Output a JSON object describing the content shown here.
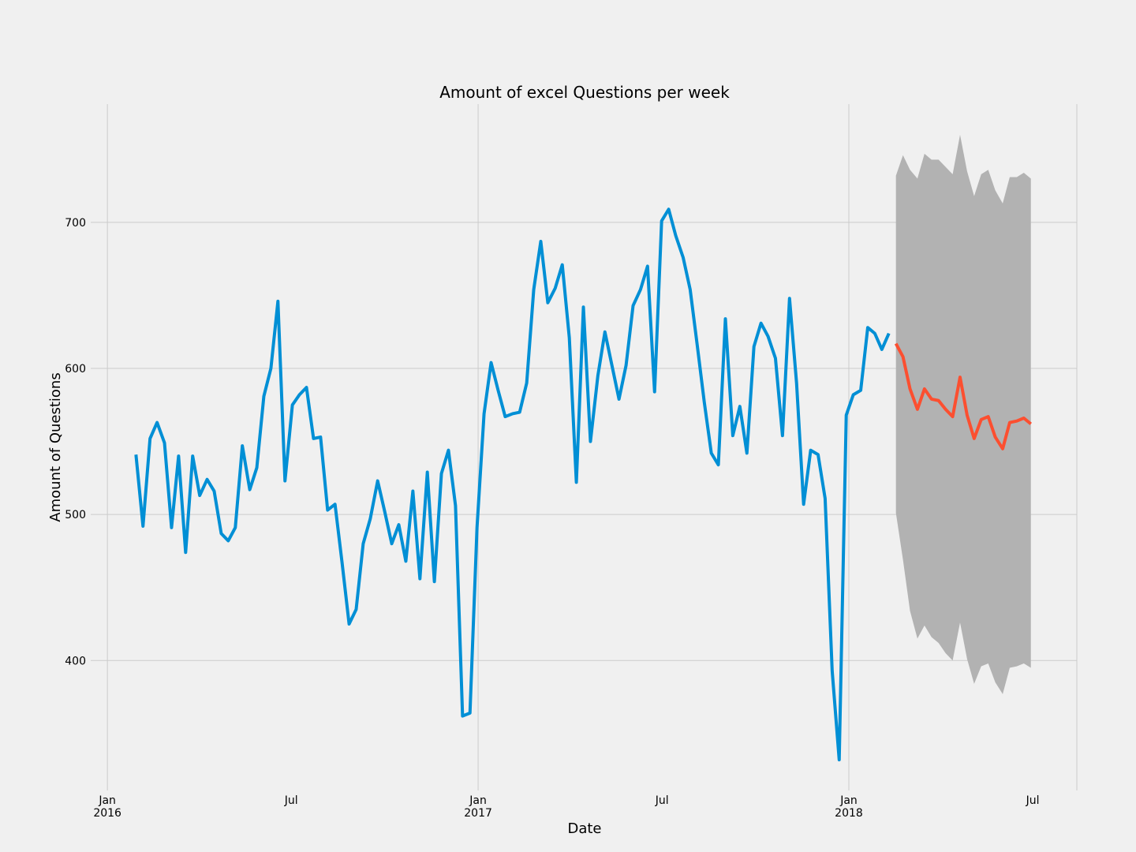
{
  "chart_data": {
    "type": "line",
    "title": "Amount of excel Questions per week",
    "xlabel": "Date",
    "ylabel": "Amount of Questions",
    "xlim": [
      2015.955,
      2018.615
    ],
    "ylim": [
      311,
      781
    ],
    "xticks": [
      {
        "value": 2016,
        "label": "Jan\n2016"
      },
      {
        "value": 2017,
        "label": "Jan\n2017"
      },
      {
        "value": 2018,
        "label": "Jan\n2018"
      }
    ],
    "xticks_minor": [
      {
        "value": 2016.496,
        "label": "Jul"
      },
      {
        "value": 2017.496,
        "label": "Jul"
      },
      {
        "value": 2018.496,
        "label": "Jul"
      }
    ],
    "yticks": [
      400,
      500,
      600,
      700
    ],
    "grid": true,
    "series": [
      {
        "color": "#008fd5",
        "x": [
          2016.077,
          2016.096,
          2016.115,
          2016.134,
          2016.154,
          2016.173,
          2016.192,
          2016.211,
          2016.23,
          2016.249,
          2016.269,
          2016.288,
          2016.307,
          2016.326,
          2016.345,
          2016.364,
          2016.384,
          2016.403,
          2016.422,
          2016.441,
          2016.46,
          2016.479,
          2016.499,
          2016.518,
          2016.537,
          2016.556,
          2016.575,
          2016.594,
          2016.614,
          2016.633,
          2016.652,
          2016.671,
          2016.69,
          2016.709,
          2016.729,
          2016.748,
          2016.767,
          2016.786,
          2016.805,
          2016.824,
          2016.843,
          2016.863,
          2016.882,
          2016.901,
          2016.92,
          2016.939,
          2016.958,
          2016.978,
          2016.997,
          2017.016,
          2017.035,
          2017.054,
          2017.073,
          2017.093,
          2017.112,
          2017.131,
          2017.15,
          2017.169,
          2017.188,
          2017.208,
          2017.227,
          2017.246,
          2017.265,
          2017.284,
          2017.303,
          2017.323,
          2017.342,
          2017.361,
          2017.38,
          2017.399,
          2017.418,
          2017.438,
          2017.457,
          2017.476,
          2017.495,
          2017.514,
          2017.533,
          2017.553,
          2017.572,
          2017.591,
          2017.61,
          2017.629,
          2017.648,
          2017.667,
          2017.687,
          2017.706,
          2017.725,
          2017.744,
          2017.763,
          2017.782,
          2017.802,
          2017.821,
          2017.84,
          2017.859,
          2017.878,
          2017.897,
          2017.917,
          2017.936,
          2017.955,
          2017.974,
          2017.993,
          2018.012,
          2018.032,
          2018.051,
          2018.07,
          2018.089,
          2018.108
        ],
        "values": [
          541,
          492,
          552,
          563,
          549,
          491,
          540,
          474,
          540,
          513,
          524,
          516,
          487,
          482,
          491,
          547,
          517,
          532,
          581,
          600,
          646,
          523,
          575,
          582,
          587,
          552,
          553,
          503,
          507,
          467,
          425,
          435,
          480,
          497,
          523,
          502,
          480,
          493,
          468,
          516,
          456,
          529,
          454,
          528,
          544,
          506,
          362,
          364,
          491,
          569,
          604,
          585,
          567,
          569,
          570,
          590,
          654,
          687,
          645,
          655,
          671,
          621,
          522,
          642,
          550,
          595,
          625,
          602,
          579,
          602,
          643,
          654,
          670,
          584,
          701,
          709,
          691,
          676,
          654,
          616,
          577,
          542,
          534,
          634,
          554,
          574,
          542,
          615,
          631,
          622,
          607,
          554,
          648,
          590,
          507,
          544,
          541,
          511,
          393,
          332,
          568,
          582,
          585,
          628,
          624,
          613,
          624
        ]
      },
      {
        "color": "#fc4f30",
        "x": [
          2018.127,
          2018.146,
          2018.165,
          2018.185,
          2018.204,
          2018.223,
          2018.242,
          2018.261,
          2018.28,
          2018.3,
          2018.319,
          2018.338,
          2018.357,
          2018.376,
          2018.395,
          2018.415,
          2018.434,
          2018.453,
          2018.472,
          2018.491
        ],
        "values": [
          617,
          608,
          586,
          572,
          586,
          579,
          578,
          572,
          567,
          594,
          568,
          552,
          565,
          567,
          553,
          545,
          563,
          564,
          566,
          562
        ]
      }
    ],
    "interval": {
      "color": "#b2b2b2",
      "upper": [
        732,
        746,
        736,
        730,
        747,
        743,
        743,
        738,
        733,
        760,
        735,
        718,
        733,
        736,
        722,
        713,
        731,
        731,
        734,
        730
      ],
      "lower": [
        501,
        469,
        434,
        415,
        424,
        416,
        412,
        405,
        400,
        426,
        401,
        384,
        396,
        398,
        385,
        377,
        395,
        396,
        398,
        395
      ]
    }
  }
}
